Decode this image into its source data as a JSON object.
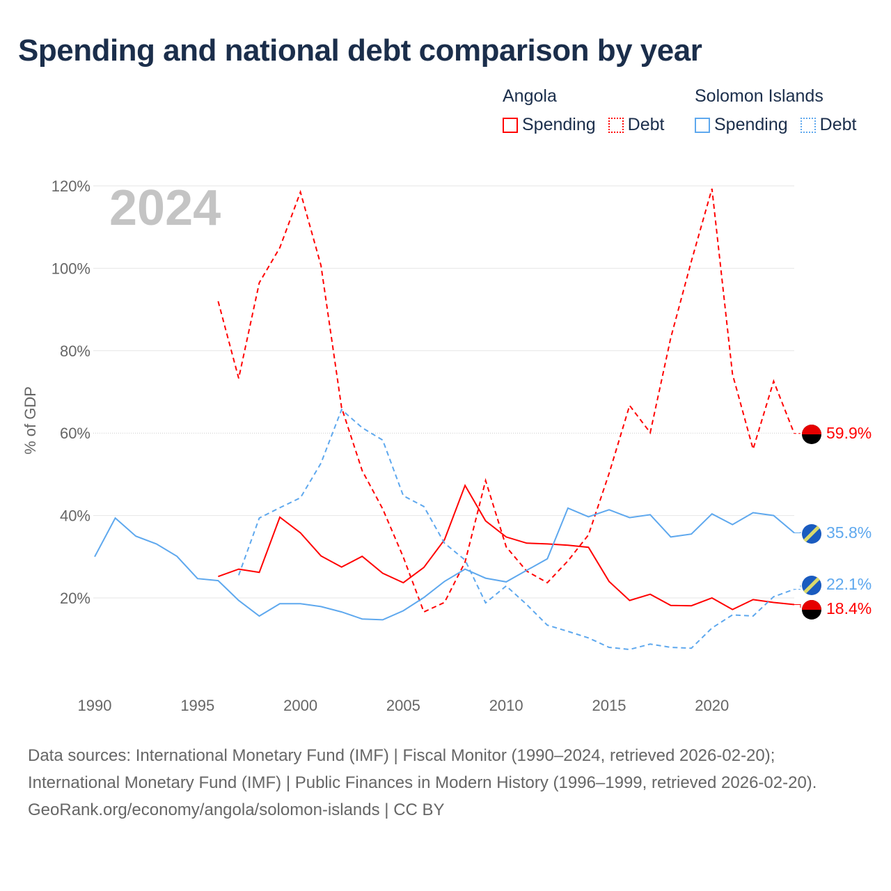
{
  "title": "Spending and national debt comparison by year",
  "legend": {
    "groups": [
      {
        "name": "Angola",
        "items": [
          {
            "label": "Spending",
            "style": "solid"
          },
          {
            "label": "Debt",
            "style": "dotted"
          }
        ],
        "color": "#ff0000"
      },
      {
        "name": "Solomon Islands",
        "items": [
          {
            "label": "Spending",
            "style": "solid"
          },
          {
            "label": "Debt",
            "style": "dotted"
          }
        ],
        "color": "#5ea8ee"
      }
    ]
  },
  "year_overlay": "2024",
  "source": {
    "line1": "Data sources: International Monetary Fund (IMF) | Fiscal Monitor (1990–2024, retrieved 2026-02-20); International Monetary Fund (IMF) | Public Finances in Modern History (1996–1999, retrieved 2026-02-20).",
    "line2": "GeoRank.org/economy/angola/solomon-islands | CC BY"
  },
  "chart_data": {
    "type": "line",
    "title": "Spending and national debt comparison by year",
    "xlabel": "",
    "ylabel": "% of GDP",
    "xlim": [
      1990,
      2024
    ],
    "ylim": [
      0,
      120
    ],
    "xticks": [
      "1990",
      "1995",
      "2000",
      "2005",
      "2010",
      "2015",
      "2020"
    ],
    "yticks": [
      "20%",
      "40%",
      "60%",
      "80%",
      "100%",
      "120%"
    ],
    "grid": true,
    "series": [
      {
        "name": "Angola Debt",
        "color": "#ff0000",
        "dash": true,
        "start": 1996,
        "end_label": "59.9%",
        "values": [
          92,
          73.3,
          96.5,
          105,
          118.5,
          100.7,
          66.2,
          50.9,
          41.6,
          29.9,
          16.6,
          18.9,
          28.7,
          48.5,
          32.4,
          26.5,
          23.7,
          29,
          35.3,
          50.2,
          66.7,
          60.1,
          83.1,
          101.7,
          119.3,
          74.3,
          56.1,
          72.6,
          59.9
        ]
      },
      {
        "name": "Angola Spending",
        "color": "#ff0000",
        "dash": false,
        "start": 1996,
        "end_label": "18.4%",
        "values": [
          25.2,
          27,
          26.2,
          39.6,
          35.8,
          30.2,
          27.5,
          30.1,
          26,
          23.7,
          27.4,
          34.1,
          47.3,
          38.7,
          34.8,
          33.3,
          33.1,
          32.8,
          32.3,
          24,
          19.4,
          20.9,
          18.2,
          18.1,
          20,
          17.2,
          19.6,
          18.9,
          18.4
        ]
      },
      {
        "name": "Solomon Islands Spending",
        "color": "#5ea8ee",
        "dash": false,
        "start": 1990,
        "end_label": "35.8%",
        "values": [
          30,
          39.4,
          35,
          33.1,
          30.1,
          24.7,
          24.2,
          19.4,
          15.6,
          18.6,
          18.6,
          17.9,
          16.6,
          14.9,
          14.7,
          16.9,
          20.1,
          24,
          27,
          24.8,
          23.9,
          26.7,
          29.5,
          41.8,
          39.7,
          41.4,
          39.5,
          40.2,
          34.8,
          35.5,
          40.4,
          37.8,
          40.7,
          40,
          35.8
        ]
      },
      {
        "name": "Solomon Islands Debt",
        "color": "#5ea8ee",
        "dash": true,
        "start": 1997,
        "end_label": "22.1%",
        "values": [
          25.5,
          39.4,
          41.9,
          44.3,
          52.7,
          65.7,
          61.3,
          58.3,
          44.8,
          42.2,
          33.3,
          29.2,
          18.8,
          22.9,
          18.4,
          13.4,
          11.9,
          10.3,
          8,
          7.5,
          8.8,
          8,
          7.8,
          12.7,
          15.9,
          15.6,
          20.3,
          22.1
        ]
      }
    ]
  }
}
